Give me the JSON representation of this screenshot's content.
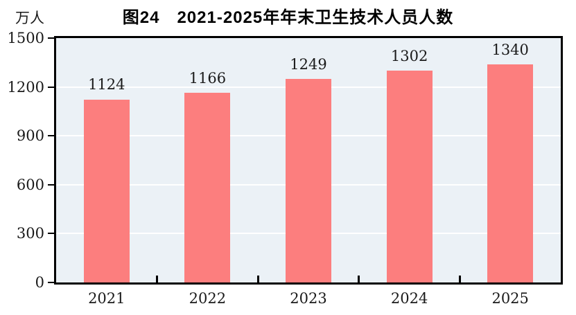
{
  "figure": {
    "title": "图24　2021-2025年年末卫生技术人员人数",
    "unit_label": "万人"
  },
  "colors": {
    "bar": "#FC7E7E",
    "plot_background": "#EBF1F6",
    "gridline": "#FFFFFF",
    "axis": "#000000",
    "text": "#1A1A1A",
    "page_background": "#FFFFFF"
  },
  "chart_data": {
    "type": "bar",
    "title": "图24　2021-2025年年末卫生技术人员人数",
    "categories": [
      "2021",
      "2022",
      "2023",
      "2024",
      "2025"
    ],
    "values": [
      1124,
      1166,
      1249,
      1302,
      1340
    ],
    "xlabel": "",
    "ylabel": "万人",
    "ylim": [
      0,
      1500
    ],
    "yticks": [
      0,
      300,
      600,
      900,
      1200,
      1500
    ],
    "grid": true,
    "gridline_color": "#FFFFFF",
    "bar_color": "#FC7E7E",
    "plot_background": "#EBF1F6",
    "legend_position": "none",
    "value_labels_shown": true
  }
}
